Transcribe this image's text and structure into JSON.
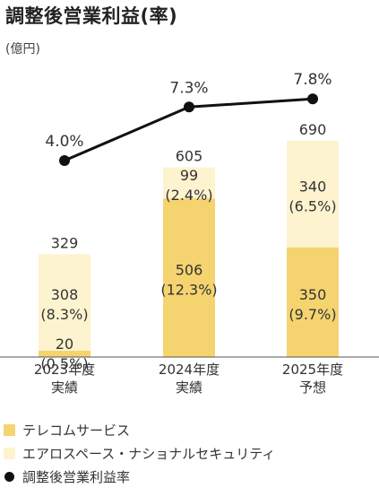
{
  "header": {
    "title": "調整後営業利益(率)",
    "unit": "(億円)"
  },
  "legend": [
    {
      "label": "テレコムサービス",
      "color": "#f5d470"
    },
    {
      "label": "エアロスペース・ナショナルセキュリティ",
      "color": "#fdf3cf"
    },
    {
      "label": "調整後営業利益率",
      "color": "#111111"
    }
  ],
  "chart_data": {
    "type": "bar",
    "stacked": true,
    "categories": [
      [
        "2023年度",
        "実績"
      ],
      [
        "2024年度",
        "実績"
      ],
      [
        "2025年度",
        "予想"
      ]
    ],
    "series": [
      {
        "name": "テレコムサービス",
        "values": [
          20,
          506,
          350
        ],
        "labels": [
          [
            "20",
            "(0.5%)"
          ],
          [
            "506",
            "(12.3%)"
          ],
          [
            "350",
            "(9.7%)"
          ]
        ],
        "color": "#f5d470"
      },
      {
        "name": "エアロスペース・ナショナルセキュリティ",
        "values": [
          308,
          99,
          340
        ],
        "labels": [
          [
            "308",
            "(8.3%)"
          ],
          [
            "99",
            "(2.4%)"
          ],
          [
            "340",
            "(6.5%)"
          ]
        ],
        "color": "#fdf3cf"
      }
    ],
    "totals": [
      329,
      605,
      690
    ],
    "line": {
      "name": "調整後営業利益率",
      "values": [
        4.0,
        7.3,
        7.8
      ],
      "labels": [
        "4.0%",
        "7.3%",
        "7.8%"
      ],
      "color": "#111111"
    },
    "ylim": [
      0,
      800
    ],
    "grid": false,
    "legend_position": "bottom-left"
  }
}
